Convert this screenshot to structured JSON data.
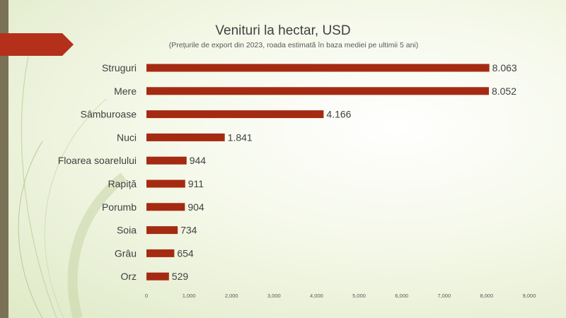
{
  "slide": {
    "colors": {
      "stripe": "#7a7257",
      "banner": "#b5301b",
      "bar": "#a52a12",
      "text": "#404040"
    }
  },
  "chart_data": {
    "type": "bar",
    "orientation": "horizontal",
    "title": "Venituri la hectar, USD",
    "subtitle": "(Prețurile de export din 2023, roada estimată în baza mediei pe ultimii 5 ani)",
    "categories": [
      "Struguri",
      "Mere",
      "Sâmburoase",
      "Nuci",
      "Floarea soarelului",
      "Rapiță",
      "Porumb",
      "Soia",
      "Grâu",
      "Orz"
    ],
    "values": [
      8063,
      8052,
      4166,
      1841,
      944,
      911,
      904,
      734,
      654,
      529
    ],
    "value_labels": [
      "8.063",
      "8.052",
      "4.166",
      "1.841",
      "944",
      "911",
      "904",
      "734",
      "654",
      "529"
    ],
    "xlim": [
      0,
      9000
    ],
    "x_ticks": [
      0,
      1000,
      2000,
      3000,
      4000,
      5000,
      6000,
      7000,
      8000,
      9000
    ],
    "x_tick_labels": [
      "0",
      "1,000",
      "2,000",
      "3,000",
      "4,000",
      "5,000",
      "6,000",
      "7,000",
      "8,000",
      "9,000"
    ],
    "grid": false,
    "legend": "none"
  }
}
